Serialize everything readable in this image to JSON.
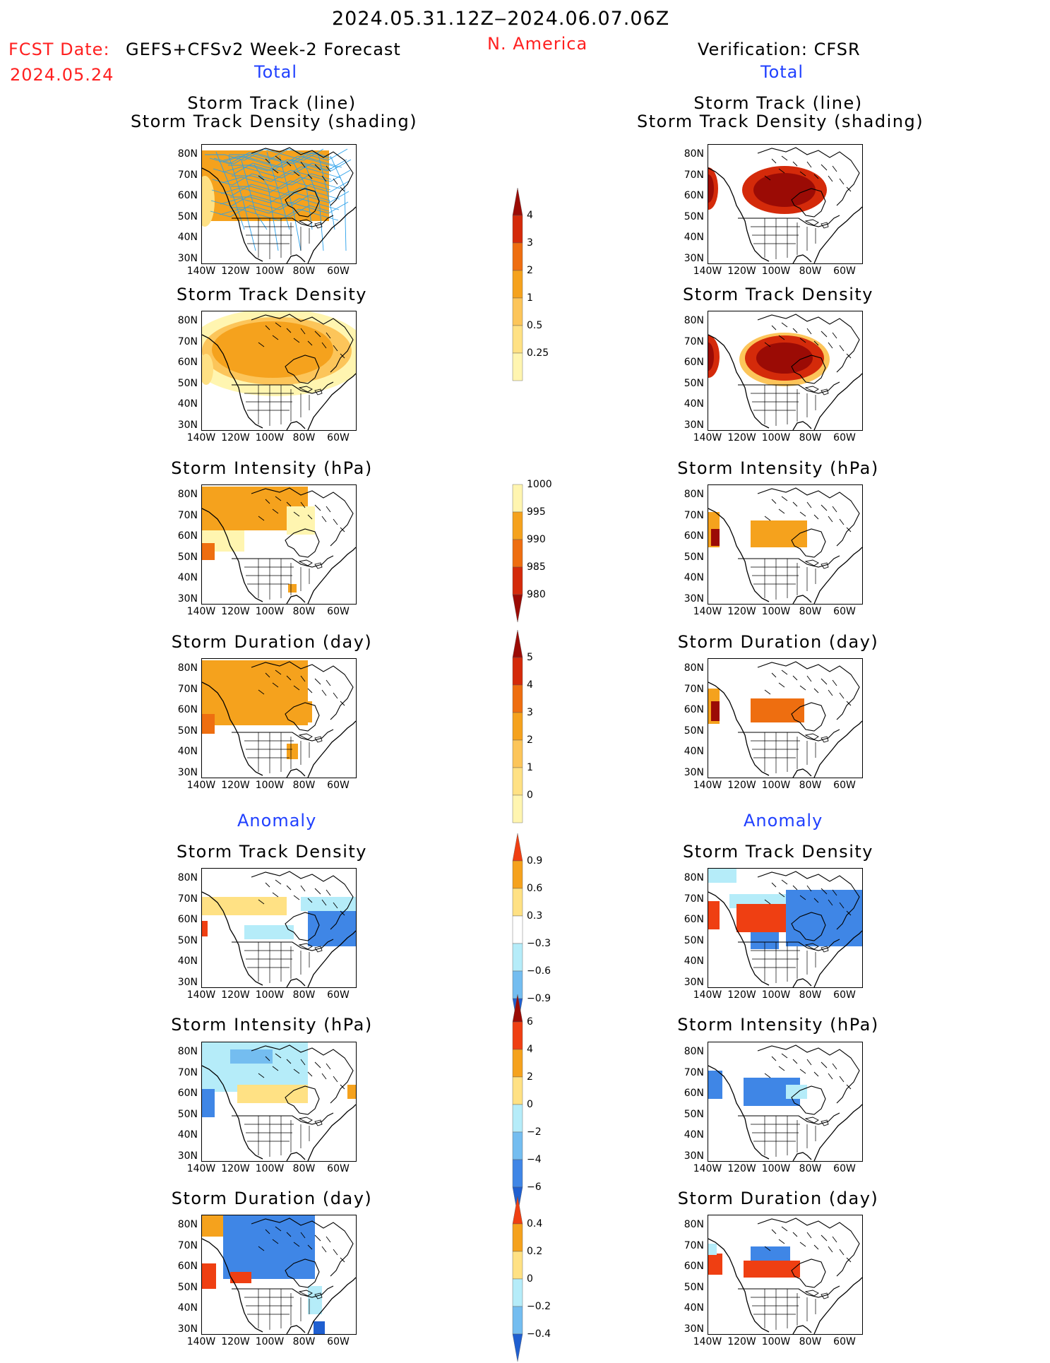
{
  "header": {
    "period": "2024.05.31.12Z‒2024.06.07.06Z",
    "region": "N. America",
    "fcst_date_label": "FCST Date:",
    "fcst_date_value": "2024.05.24",
    "forecast_name": "GEFS+CFSv2 Week-2 Forecast",
    "verification": "Verification: CFSR"
  },
  "sections": {
    "total": "Total",
    "anomaly": "Anomaly"
  },
  "panel_titles": {
    "track_line": "Storm Track (line)",
    "track_shading": "Storm Track Density (shading)",
    "density": "Storm Track Density",
    "intensity": "Storm Intensity (hPa)",
    "duration": "Storm Duration (day)"
  },
  "axes": {
    "lat": [
      "80N",
      "70N",
      "60N",
      "50N",
      "40N",
      "30N"
    ],
    "lon": [
      "140W",
      "120W",
      "100W",
      "80W",
      "60W"
    ]
  },
  "colorbars": {
    "density_total": [
      "4",
      "3",
      "2",
      "1",
      "0.5",
      "0.25"
    ],
    "intensity_total": [
      "1000",
      "995",
      "990",
      "985",
      "980"
    ],
    "duration_total": [
      "5",
      "4",
      "3",
      "2",
      "1",
      "0"
    ],
    "density_anom": [
      "0.9",
      "0.6",
      "0.3",
      "−0.3",
      "−0.6",
      "−0.9"
    ],
    "intensity_anom": [
      "6",
      "4",
      "2",
      "0",
      "−2",
      "−4",
      "−6"
    ],
    "duration_anom": [
      "0.4",
      "0.2",
      "0",
      "−0.2",
      "−0.4"
    ]
  },
  "colors": {
    "pale_yellow": "#fff5b0",
    "light_yellow": "#ffe184",
    "light_orange": "#fcc55a",
    "orange": "#f5a21d",
    "dark_orange": "#ee6e10",
    "red": "#d42a0a",
    "dark_red": "#9b0b05",
    "light_blue": "#b5ecf9",
    "mid_blue": "#74bdf0",
    "blue": "#3f86e6",
    "dark_blue": "#1f5fd0",
    "anom_orange": "#f5a21d",
    "anom_red": "#ef3f12",
    "anom_yellow": "#ffe184",
    "track_blue": "#2aa0ea"
  }
}
